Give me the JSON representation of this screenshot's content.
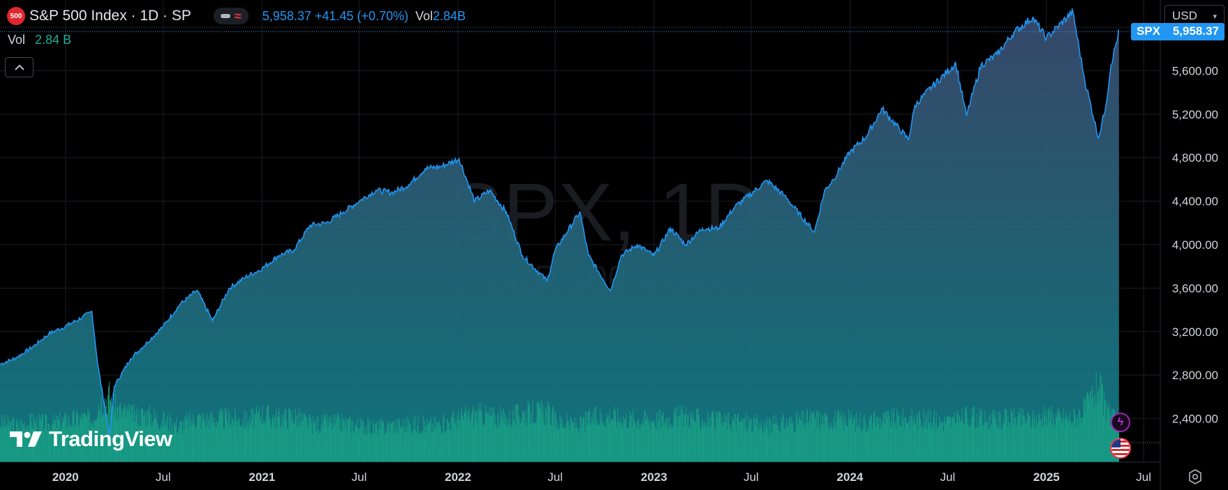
{
  "header": {
    "logo_text": "500",
    "symbol_title": "S&P 500 Index · 1D · SP",
    "ohlc_text": "5,958.37 +41.45 (+0.70%)",
    "vol_label": "Vol",
    "vol_value": "2.84 B",
    "vol_value_compact": "2.84B"
  },
  "currency": {
    "selected": "USD"
  },
  "price_tag": {
    "symbol": "SPX",
    "value": "5,958.37"
  },
  "watermark": {
    "big": "SPX, 1D",
    "small": "S&P 500 Index"
  },
  "branding": {
    "logo_text": "TradingView"
  },
  "colors": {
    "line": "#2196f3",
    "area_top": "#3a4a6e",
    "area_bottom": "#0f7a82",
    "volume": "#1aa186",
    "grid": "#1c1e24",
    "axis_text": "#d1d4dc"
  },
  "icons": [
    "collapse-chevron-icon",
    "flash-icon",
    "us-flag-icon",
    "settings-icon",
    "caret-down-icon"
  ],
  "chart_data": {
    "type": "area",
    "title": "S&P 500 Index · 1D · SP",
    "series": [
      {
        "name": "SPX",
        "x": [
          "2019-09-01",
          "2019-10-01",
          "2019-11-01",
          "2019-12-01",
          "2020-01-01",
          "2020-02-01",
          "2020-02-19",
          "2020-03-01",
          "2020-03-23",
          "2020-04-01",
          "2020-05-01",
          "2020-06-01",
          "2020-07-01",
          "2020-08-01",
          "2020-09-02",
          "2020-10-01",
          "2020-11-01",
          "2020-12-01",
          "2021-01-01",
          "2021-02-01",
          "2021-03-01",
          "2021-04-01",
          "2021-05-01",
          "2021-06-01",
          "2021-07-01",
          "2021-08-01",
          "2021-09-01",
          "2021-10-01",
          "2021-11-01",
          "2021-12-01",
          "2022-01-03",
          "2022-02-01",
          "2022-03-01",
          "2022-04-01",
          "2022-05-01",
          "2022-06-16",
          "2022-07-01",
          "2022-08-16",
          "2022-09-01",
          "2022-10-12",
          "2022-11-01",
          "2022-12-01",
          "2023-01-01",
          "2023-02-01",
          "2023-03-01",
          "2023-04-01",
          "2023-05-01",
          "2023-06-01",
          "2023-07-31",
          "2023-09-01",
          "2023-10-27",
          "2023-11-15",
          "2023-12-01",
          "2024-01-01",
          "2024-02-01",
          "2024-03-01",
          "2024-04-19",
          "2024-05-01",
          "2024-06-01",
          "2024-07-16",
          "2024-08-05",
          "2024-09-01",
          "2024-10-01",
          "2024-11-01",
          "2024-12-06",
          "2025-01-01",
          "2025-02-19",
          "2025-03-13",
          "2025-04-08",
          "2025-04-22",
          "2025-05-01",
          "2025-05-16"
        ],
        "values": [
          2900,
          2960,
          3060,
          3180,
          3250,
          3330,
          3386,
          2900,
          2237,
          2700,
          2950,
          3100,
          3250,
          3450,
          3580,
          3300,
          3600,
          3700,
          3780,
          3900,
          3950,
          4180,
          4200,
          4300,
          4400,
          4500,
          4480,
          4550,
          4700,
          4720,
          4790,
          4400,
          4500,
          4300,
          3900,
          3667,
          3950,
          4300,
          3900,
          3577,
          3900,
          4000,
          3900,
          4150,
          4000,
          4150,
          4150,
          4350,
          4590,
          4450,
          4117,
          4500,
          4600,
          4850,
          5000,
          5250,
          4967,
          5280,
          5450,
          5667,
          5186,
          5650,
          5750,
          5950,
          6090,
          5900,
          6144,
          5521,
          4982,
          5290,
          5650,
          5958
        ]
      }
    ],
    "volume_billions": [
      3.2,
      3.0,
      3.3,
      3.1,
      3.4,
      3.6,
      3.5,
      4.8,
      5.5,
      4.4,
      3.8,
      3.9,
      3.4,
      3.0,
      3.6,
      3.5,
      3.6,
      3.4,
      3.9,
      3.6,
      3.8,
      3.1,
      3.2,
      3.2,
      3.0,
      2.8,
      3.0,
      3.1,
      3.0,
      3.1,
      3.6,
      3.9,
      3.8,
      3.5,
      4.0,
      4.1,
      3.4,
      3.0,
      3.5,
      3.8,
      3.6,
      3.5,
      3.5,
      3.6,
      3.8,
      3.4,
      3.3,
      3.4,
      3.0,
      3.2,
      3.6,
      3.4,
      3.5,
      3.4,
      3.3,
      3.5,
      3.6,
      3.5,
      3.4,
      3.3,
      3.8,
      3.5,
      3.4,
      3.6,
      3.5,
      3.7,
      3.6,
      4.3,
      6.3,
      4.0,
      3.8,
      2.84
    ],
    "y_ticks": [
      "2,400.00",
      "2,800.00",
      "3,200.00",
      "3,600.00",
      "4,000.00",
      "4,400.00",
      "4,800.00",
      "5,200.00",
      "5,600.00"
    ],
    "y_tick_values": [
      2400,
      2800,
      3200,
      3600,
      4000,
      4400,
      4800,
      5200,
      5600
    ],
    "x_ticks": [
      "2020",
      "Jul",
      "2021",
      "Jul",
      "2022",
      "Jul",
      "2023",
      "Jul",
      "2024",
      "Jul",
      "2025",
      "Jul"
    ],
    "x_tick_dates": [
      "2020-01-01",
      "2020-07-01",
      "2021-01-01",
      "2021-07-01",
      "2022-01-01",
      "2022-07-01",
      "2023-01-01",
      "2023-07-01",
      "2024-01-01",
      "2024-07-01",
      "2025-01-01",
      "2025-07-01"
    ],
    "x_range": [
      "2019-09-01",
      "2025-08-01"
    ],
    "ylim": [
      2000,
      6250
    ],
    "last_value": 5958.37,
    "grid": true,
    "legend_position": "top-left"
  }
}
